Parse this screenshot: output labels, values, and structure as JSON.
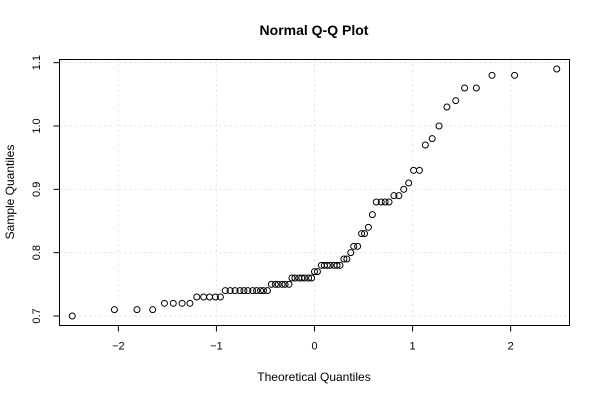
{
  "chart_data": {
    "type": "scatter",
    "title": "Normal Q-Q Plot",
    "xlabel": "Theoretical Quantiles",
    "ylabel": "Sample Quantiles",
    "xlim": [
      -2.6,
      2.6
    ],
    "ylim": [
      0.685,
      1.105
    ],
    "x_ticks": [
      -2,
      -1,
      0,
      1,
      2
    ],
    "x_tick_labels": [
      "−2",
      "−1",
      "0",
      "1",
      "2"
    ],
    "y_ticks": [
      0.7,
      0.8,
      0.9,
      1.0,
      1.1
    ],
    "y_tick_labels": [
      "0.7",
      "0.8",
      "0.9",
      "1.0",
      "1.1"
    ],
    "grid": true,
    "marker": "open-circle",
    "points": [
      [
        -2.47,
        0.7
      ],
      [
        -2.04,
        0.71
      ],
      [
        -1.81,
        0.71
      ],
      [
        -1.65,
        0.71
      ],
      [
        -1.53,
        0.72
      ],
      [
        -1.44,
        0.72
      ],
      [
        -1.35,
        0.72
      ],
      [
        -1.27,
        0.72
      ],
      [
        -1.2,
        0.73
      ],
      [
        -1.13,
        0.73
      ],
      [
        -1.07,
        0.73
      ],
      [
        -1.01,
        0.73
      ],
      [
        -0.96,
        0.73
      ],
      [
        -0.91,
        0.74
      ],
      [
        -0.86,
        0.74
      ],
      [
        -0.81,
        0.74
      ],
      [
        -0.76,
        0.74
      ],
      [
        -0.72,
        0.74
      ],
      [
        -0.68,
        0.74
      ],
      [
        -0.63,
        0.74
      ],
      [
        -0.59,
        0.74
      ],
      [
        -0.55,
        0.74
      ],
      [
        -0.52,
        0.74
      ],
      [
        -0.48,
        0.74
      ],
      [
        -0.44,
        0.75
      ],
      [
        -0.4,
        0.75
      ],
      [
        -0.37,
        0.75
      ],
      [
        -0.33,
        0.75
      ],
      [
        -0.3,
        0.75
      ],
      [
        -0.26,
        0.75
      ],
      [
        -0.23,
        0.76
      ],
      [
        -0.2,
        0.76
      ],
      [
        -0.16,
        0.76
      ],
      [
        -0.13,
        0.76
      ],
      [
        -0.1,
        0.76
      ],
      [
        -0.06,
        0.76
      ],
      [
        -0.03,
        0.76
      ],
      [
        0.0,
        0.77
      ],
      [
        0.03,
        0.77
      ],
      [
        0.07,
        0.78
      ],
      [
        0.1,
        0.78
      ],
      [
        0.13,
        0.78
      ],
      [
        0.16,
        0.78
      ],
      [
        0.2,
        0.78
      ],
      [
        0.23,
        0.78
      ],
      [
        0.26,
        0.78
      ],
      [
        0.3,
        0.79
      ],
      [
        0.33,
        0.79
      ],
      [
        0.37,
        0.8
      ],
      [
        0.4,
        0.81
      ],
      [
        0.44,
        0.81
      ],
      [
        0.48,
        0.83
      ],
      [
        0.51,
        0.83
      ],
      [
        0.55,
        0.84
      ],
      [
        0.59,
        0.86
      ],
      [
        0.63,
        0.88
      ],
      [
        0.68,
        0.88
      ],
      [
        0.72,
        0.88
      ],
      [
        0.76,
        0.88
      ],
      [
        0.81,
        0.89
      ],
      [
        0.86,
        0.89
      ],
      [
        0.91,
        0.9
      ],
      [
        0.96,
        0.91
      ],
      [
        1.01,
        0.93
      ],
      [
        1.07,
        0.93
      ],
      [
        1.13,
        0.97
      ],
      [
        1.2,
        0.98
      ],
      [
        1.27,
        1.0
      ],
      [
        1.35,
        1.03
      ],
      [
        1.44,
        1.04
      ],
      [
        1.53,
        1.06
      ],
      [
        1.65,
        1.06
      ],
      [
        1.81,
        1.08
      ],
      [
        2.04,
        1.08
      ],
      [
        2.47,
        1.09
      ]
    ]
  }
}
